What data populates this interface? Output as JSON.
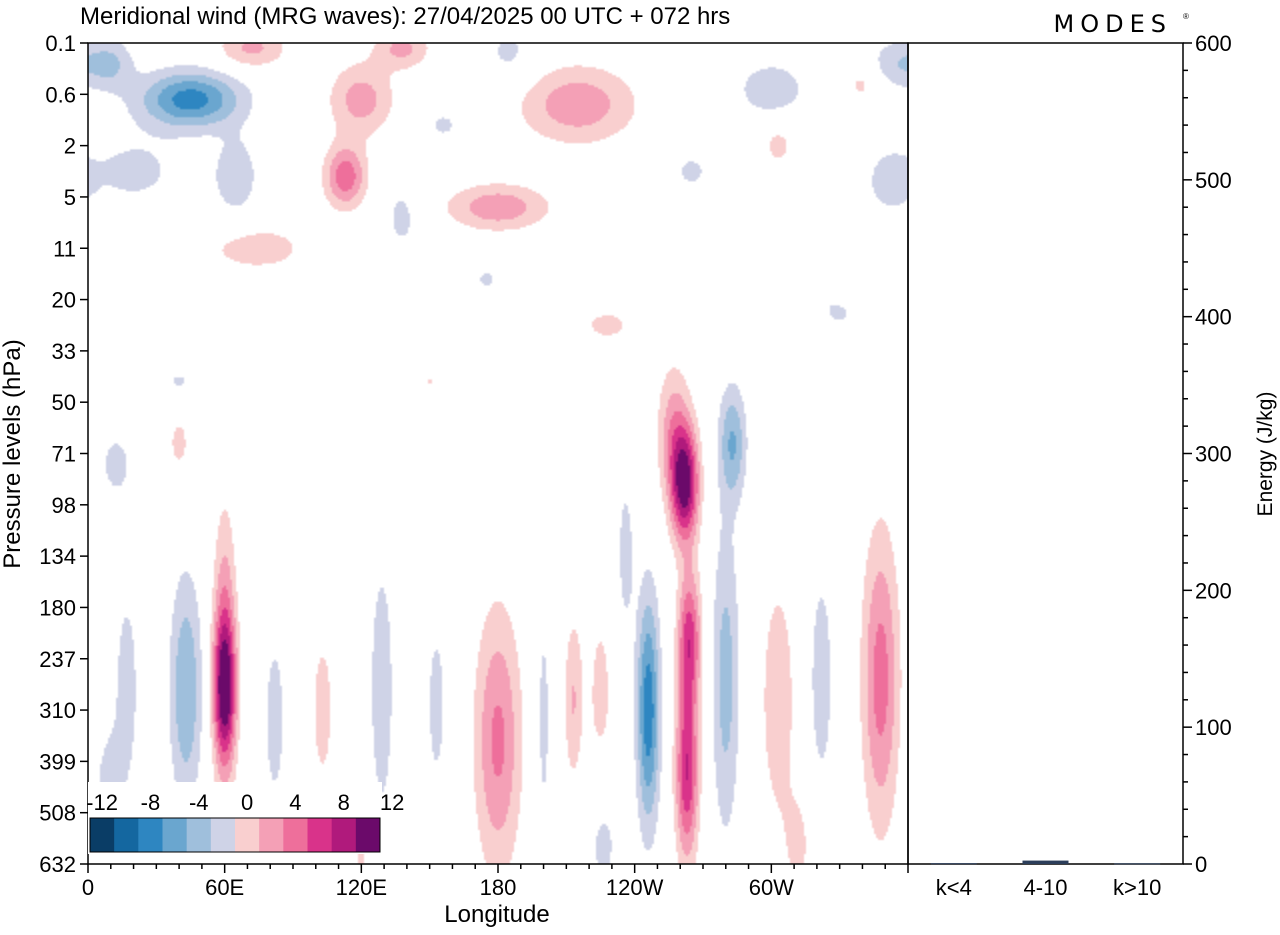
{
  "header": {
    "title": "Meridional wind (MRG waves):  27/04/2025  00 UTC  + 072 hrs",
    "brand": "MODES"
  },
  "colors": {
    "neg_scale": [
      "#0a3d66",
      "#1467a0",
      "#2e86c1",
      "#6aa6cf",
      "#9fbfdc",
      "#cfd3e7"
    ],
    "pos_scale": [
      "#f9cfcf",
      "#f4a0b6",
      "#ee6f9b",
      "#d9338a",
      "#b01a7c",
      "#6b0a6a"
    ]
  },
  "chart_data": [
    {
      "type": "heatmap",
      "title": "Meridional wind (MRG waves):  27/04/2025  00 UTC  + 072 hrs",
      "xlabel": "Longitude",
      "ylabel": "Pressure levels (hPa)",
      "x_ticks": [
        {
          "lon": 0,
          "label": "0"
        },
        {
          "lon": 60,
          "label": "60E"
        },
        {
          "lon": 120,
          "label": "120E"
        },
        {
          "lon": 180,
          "label": "180"
        },
        {
          "lon": 240,
          "label": "120W"
        },
        {
          "lon": 300,
          "label": "60W"
        }
      ],
      "xlim": [
        0,
        360
      ],
      "y_levels": [
        "0.1",
        "0.6",
        "2",
        "5",
        "11",
        "20",
        "33",
        "50",
        "71",
        "98",
        "134",
        "180",
        "237",
        "310",
        "399",
        "508",
        "632"
      ],
      "colorbar": {
        "levels": [
          -12,
          -10,
          -8,
          -6,
          -4,
          -2,
          0,
          2,
          4,
          6,
          8,
          10,
          12
        ],
        "tick_labels": [
          "-12",
          "-8",
          "-4",
          "0",
          "4",
          "8",
          "12"
        ],
        "placement": "bottom-left"
      },
      "features": [
        {
          "lon": 60,
          "lev": 12.6,
          "sign": 1,
          "amp": 9,
          "wl": 5,
          "wv": 1.3
        },
        {
          "lon": 60,
          "lev": 12.0,
          "sign": 1,
          "amp": 7,
          "wl": 5,
          "wv": 2.6
        },
        {
          "lon": 43,
          "lev": 12.6,
          "sign": -1,
          "amp": 6,
          "wl": 7,
          "wv": 2.2
        },
        {
          "lon": 17,
          "lev": 12.6,
          "sign": -1,
          "amp": 2.5,
          "wl": 8,
          "wv": 3
        },
        {
          "lon": 82,
          "lev": 13.2,
          "sign": -1,
          "amp": 2.5,
          "wl": 7,
          "wv": 2.5
        },
        {
          "lon": 103,
          "lev": 13.0,
          "sign": 1,
          "amp": 2.5,
          "wl": 7,
          "wv": 2.2
        },
        {
          "lon": 129,
          "lev": 12.6,
          "sign": -1,
          "amp": 4,
          "wl": 5,
          "wv": 2.4
        },
        {
          "lon": 153,
          "lev": 12.9,
          "sign": -1,
          "amp": 2.5,
          "wl": 6,
          "wv": 2.3
        },
        {
          "lon": 180,
          "lev": 13.6,
          "sign": 1,
          "amp": 6.5,
          "wl": 10,
          "wv": 2.5
        },
        {
          "lon": 200,
          "lev": 13.2,
          "sign": -1,
          "amp": 2.5,
          "wl": 4,
          "wv": 3
        },
        {
          "lon": 213,
          "lev": 12.8,
          "sign": 1,
          "amp": 4,
          "wl": 4,
          "wv": 1.6
        },
        {
          "lon": 225,
          "lev": 12.8,
          "sign": 1,
          "amp": 2.5,
          "wl": 7,
          "wv": 2.4
        },
        {
          "lon": 246,
          "lev": 13.0,
          "sign": -1,
          "amp": 9.5,
          "wl": 5,
          "wv": 2.2
        },
        {
          "lon": 236,
          "lev": 10.0,
          "sign": -1,
          "amp": 3,
          "wl": 4,
          "wv": 1.6
        },
        {
          "lon": 262,
          "lev": 8.6,
          "sign": 1,
          "amp": 13,
          "wl": 6,
          "wv": 1.1
        },
        {
          "lon": 257,
          "lev": 7.6,
          "sign": 1,
          "amp": 5,
          "wl": 7,
          "wv": 1.3
        },
        {
          "lon": 264,
          "lev": 11.6,
          "sign": 1,
          "amp": 9,
          "wl": 5,
          "wv": 1.3
        },
        {
          "lon": 263,
          "lev": 14.2,
          "sign": 1,
          "amp": 10,
          "wl": 5,
          "wv": 1.7
        },
        {
          "lon": 280,
          "lev": 12.4,
          "sign": -1,
          "amp": 5,
          "wl": 6,
          "wv": 3
        },
        {
          "lon": 283,
          "lev": 7.8,
          "sign": -1,
          "amp": 6,
          "wl": 6,
          "wv": 1.1
        },
        {
          "lon": 303,
          "lev": 12.8,
          "sign": 1,
          "amp": 4,
          "wl": 7,
          "wv": 2.2
        },
        {
          "lon": 322,
          "lev": 12.4,
          "sign": -1,
          "amp": 3,
          "wl": 6,
          "wv": 2.5
        },
        {
          "lon": 348,
          "lev": 12.4,
          "sign": 1,
          "amp": 7,
          "wl": 8,
          "wv": 2.8
        },
        {
          "lon": 8,
          "lev": 14.6,
          "sign": -1,
          "amp": 2.5,
          "wl": 6,
          "wv": 1.2
        },
        {
          "lon": 120,
          "lev": 15.6,
          "sign": 1,
          "amp": 2.5,
          "wl": 4,
          "wv": 1.2
        },
        {
          "lon": 226,
          "lev": 15.5,
          "sign": -1,
          "amp": 3,
          "wl": 8,
          "wv": 1.3
        },
        {
          "lon": 312,
          "lev": 15.6,
          "sign": 1,
          "amp": 2.5,
          "wl": 7,
          "wv": 1.2
        },
        {
          "lon": 40,
          "lev": 7.8,
          "sign": 1,
          "amp": 2.5,
          "wl": 6,
          "wv": 0.7
        },
        {
          "lon": 12,
          "lev": 8.2,
          "sign": -1,
          "amp": 2.5,
          "wl": 8,
          "wv": 0.7
        },
        {
          "lon": 45,
          "lev": 1.1,
          "sign": -1,
          "amp": 9,
          "wl": 22,
          "wv": 0.55
        },
        {
          "lon": 10,
          "lev": 0.4,
          "sign": -1,
          "amp": 4,
          "wl": 10,
          "wv": 0.5
        },
        {
          "lon": 20,
          "lev": 2.5,
          "sign": -1,
          "amp": 2.5,
          "wl": 25,
          "wv": 0.8
        },
        {
          "lon": 65,
          "lev": 2.6,
          "sign": -1,
          "amp": 3.5,
          "wl": 10,
          "wv": 0.8
        },
        {
          "lon": 120,
          "lev": 1.1,
          "sign": 1,
          "amp": 5,
          "wl": 14,
          "wv": 0.7
        },
        {
          "lon": 113,
          "lev": 2.6,
          "sign": 1,
          "amp": 7.5,
          "wl": 9,
          "wv": 0.6
        },
        {
          "lon": 138,
          "lev": 3.4,
          "sign": -1,
          "amp": 2.5,
          "wl": 9,
          "wv": 0.8
        },
        {
          "lon": 72,
          "lev": 0.1,
          "sign": 1,
          "amp": 4.5,
          "wl": 15,
          "wv": 0.4
        },
        {
          "lon": 138,
          "lev": 0.1,
          "sign": 1,
          "amp": 4.5,
          "wl": 12,
          "wv": 0.4
        },
        {
          "lon": 180,
          "lev": 3.2,
          "sign": 1,
          "amp": 5.5,
          "wl": 22,
          "wv": 0.45
        },
        {
          "lon": 215,
          "lev": 1.2,
          "sign": 1,
          "amp": 5.5,
          "wl": 25,
          "wv": 0.75
        },
        {
          "lon": 185,
          "lev": 0.2,
          "sign": -1,
          "amp": 2.5,
          "wl": 12,
          "wv": 0.6
        },
        {
          "lon": 156,
          "lev": 1.6,
          "sign": -1,
          "amp": 2.5,
          "wl": 8,
          "wv": 0.3
        },
        {
          "lon": 300,
          "lev": 0.9,
          "sign": -1,
          "amp": 4,
          "wl": 14,
          "wv": 0.5
        },
        {
          "lon": 355,
          "lev": 0.4,
          "sign": -1,
          "amp": 3.5,
          "wl": 12,
          "wv": 0.5
        },
        {
          "lon": 340,
          "lev": 0.8,
          "sign": 1,
          "amp": 2.5,
          "wl": 8,
          "wv": 0.4
        },
        {
          "lon": 303,
          "lev": 2.0,
          "sign": 1,
          "amp": 2.5,
          "wl": 8,
          "wv": 0.5
        },
        {
          "lon": 352,
          "lev": 2.7,
          "sign": -1,
          "amp": 3,
          "wl": 10,
          "wv": 0.6
        },
        {
          "lon": 265,
          "lev": 2.5,
          "sign": -1,
          "amp": 2.5,
          "wl": 9,
          "wv": 0.4
        },
        {
          "lon": 74,
          "lev": 4.0,
          "sign": 1,
          "amp": 3,
          "wl": 25,
          "wv": 0.5
        },
        {
          "lon": 228,
          "lev": 5.5,
          "sign": 1,
          "amp": 2.5,
          "wl": 14,
          "wv": 0.4
        },
        {
          "lon": 330,
          "lev": 5.2,
          "sign": -1,
          "amp": 2.5,
          "wl": 10,
          "wv": 0.4
        },
        {
          "lon": 335,
          "lev": 4.8,
          "sign": 1,
          "amp": 2.5,
          "wl": 6,
          "wv": 0.3
        },
        {
          "lon": 175,
          "lev": 4.6,
          "sign": -1,
          "amp": 2.3,
          "wl": 7,
          "wv": 0.3
        },
        {
          "lon": 40,
          "lev": 6.6,
          "sign": -1,
          "amp": 2.3,
          "wl": 8,
          "wv": 0.3
        },
        {
          "lon": 150,
          "lev": 6.6,
          "sign": 1,
          "amp": 2.2,
          "wl": 3,
          "wv": 0.15
        }
      ]
    },
    {
      "type": "bar",
      "categories": [
        "k<4",
        "4-10",
        "k>10"
      ],
      "values": [
        0.6,
        2.5,
        0.5
      ],
      "ylabel": "Energy (J/kg)",
      "ylim": [
        0,
        600
      ],
      "y_ticks": [
        "0",
        "100",
        "200",
        "300",
        "400",
        "500",
        "600"
      ]
    }
  ]
}
